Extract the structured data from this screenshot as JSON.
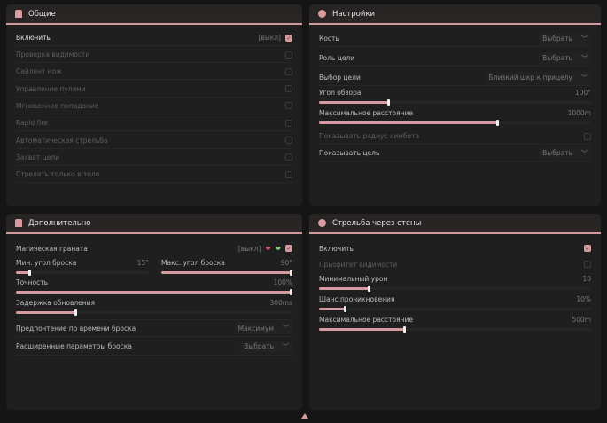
{
  "general": {
    "title": "Общие",
    "enable": {
      "label": "Включить",
      "key": "[выкл]",
      "checked": true
    },
    "items": [
      {
        "label": "Проверка видимости",
        "checked": false
      },
      {
        "label": "Сайлент нож",
        "checked": false
      },
      {
        "label": "Управление пулями",
        "checked": false
      },
      {
        "label": "Мгновенное попадание",
        "checked": false
      },
      {
        "label": "Rapid fire",
        "checked": false
      },
      {
        "label": "Автоматическая стрельба",
        "checked": false
      },
      {
        "label": "Захват цели",
        "checked": false
      },
      {
        "label": "Стрелять только в тело",
        "checked": false
      }
    ]
  },
  "settings": {
    "title": "Настройки",
    "bone": {
      "label": "Кость",
      "value": "Выбрать"
    },
    "role": {
      "label": "Роль цели",
      "value": "Выбрать"
    },
    "target": {
      "label": "Выбор цели",
      "value": "Близкий шкр к прицелу"
    },
    "fov": {
      "label": "Угол обзора",
      "value": "100°",
      "fraction": 0.26
    },
    "maxdist": {
      "label": "Максимальное расстояние",
      "value": "1000m",
      "fraction": 0.66
    },
    "radius": {
      "label": "Показывать радиус аимбота",
      "checked": false
    },
    "show": {
      "label": "Показывать цель",
      "value": "Выбрать"
    }
  },
  "extra": {
    "title": "Дополнительно",
    "grenade": {
      "label": "Магическая граната",
      "key": "[выкл]",
      "checked": true
    },
    "minangle": {
      "label": "Мин. угол броска",
      "value": "15°",
      "fraction": 0.11
    },
    "maxangle": {
      "label": "Макс. угол броска",
      "value": "90°",
      "fraction": 1.0
    },
    "accuracy": {
      "label": "Точность",
      "value": "100%",
      "fraction": 1.0
    },
    "delay": {
      "label": "Задержка обновления",
      "value": "300ms",
      "fraction": 0.22
    },
    "pref": {
      "label": "Предпочтение по времени броска",
      "value": "Максимум"
    },
    "adv": {
      "label": "Расширенные параметры броска",
      "value": "Выбрать"
    }
  },
  "walls": {
    "title": "Стрельба через стены",
    "enable": {
      "label": "Включить",
      "checked": true
    },
    "priority": {
      "label": "Приоритет видимости",
      "checked": false
    },
    "mindmg": {
      "label": "Минимальный урон",
      "value": "10",
      "fraction": 0.19
    },
    "chance": {
      "label": "Шанс проникновения",
      "value": "10%",
      "fraction": 0.1
    },
    "maxdist": {
      "label": "Максимальное расстояние",
      "value": "500m",
      "fraction": 0.32
    }
  },
  "colors": {
    "accent": "#d39aa0",
    "bg": "#151515",
    "panel": "#1f1f1f"
  }
}
